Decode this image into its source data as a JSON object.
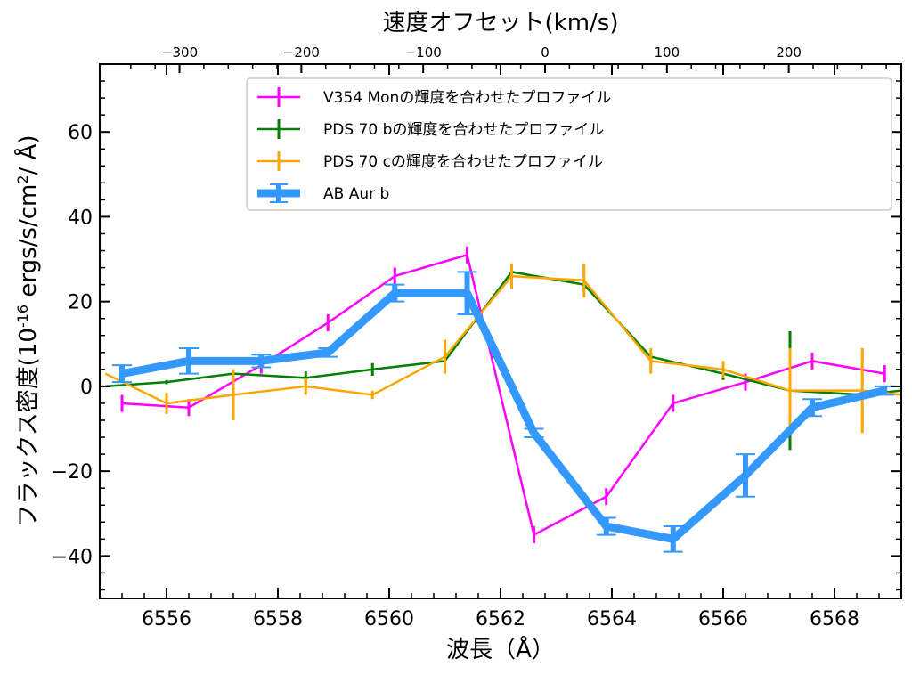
{
  "chart_data": {
    "type": "line",
    "xlabel": "波長（Å）",
    "ylabel_main": "フラックス密度(10",
    "ylabel_exp": "-16",
    "ylabel_mid": " ergs/s/cm",
    "ylabel_exp2": "2",
    "ylabel_end": "/ Å)",
    "top_xlabel": "速度オフセット(km/s)",
    "xlim": [
      6554.8,
      6569.2
    ],
    "ylim": [
      -50,
      76
    ],
    "x_ticks": [
      6556,
      6558,
      6560,
      6562,
      6564,
      6566,
      6568
    ],
    "x_tick_labels": [
      "6556",
      "6558",
      "6560",
      "6562",
      "6564",
      "6566",
      "6568"
    ],
    "y_ticks": [
      -40,
      -20,
      0,
      20,
      40,
      60
    ],
    "y_tick_labels": [
      "−40",
      "−20",
      "0",
      "20",
      "40",
      "60"
    ],
    "top_ticks": [
      -300,
      -200,
      -100,
      0,
      100,
      200
    ],
    "top_tick_labels": [
      "−300",
      "−200",
      "−100",
      "0",
      "100",
      "200"
    ],
    "center_wavelength": 6562.8,
    "grid": false,
    "legend_position": "top-right",
    "series": [
      {
        "name": "V354 Monの輝度を合わせたプロファイル",
        "color": "#ff00ff",
        "line_width": 2.5,
        "x": [
          6555.2,
          6556.4,
          6557.7,
          6558.9,
          6560.1,
          6561.4,
          6562.6,
          6563.9,
          6565.1,
          6566.4,
          6567.6,
          6568.9
        ],
        "y": [
          -4,
          -5,
          5,
          15,
          26,
          31,
          -35,
          -26,
          -4,
          1,
          6,
          3
        ],
        "err": [
          2,
          2,
          2,
          2,
          2,
          2,
          2,
          2,
          2,
          2,
          2,
          2
        ]
      },
      {
        "name": "PDS 70 bの輝度を合わせたプロファイル",
        "color": "#008000",
        "line_width": 2.5,
        "x": [
          6554.9,
          6556.0,
          6557.2,
          6558.5,
          6559.7,
          6561.0,
          6562.2,
          6563.5,
          6564.7,
          6566.0,
          6567.2,
          6568.5,
          6569.2
        ],
        "y": [
          0,
          1,
          3,
          2,
          4,
          6,
          27,
          24,
          7,
          3,
          -1,
          -2,
          -1
        ],
        "err": [
          0,
          0.5,
          1,
          1.5,
          1.5,
          1,
          1,
          1,
          1,
          1.5,
          14,
          1,
          0
        ]
      },
      {
        "name": "PDS 70 cの輝度を合わせたプロファイル",
        "color": "#ffa500",
        "line_width": 2.5,
        "x": [
          6554.9,
          6556.0,
          6557.2,
          6558.5,
          6559.7,
          6561.0,
          6562.2,
          6563.5,
          6564.7,
          6566.0,
          6567.2,
          6568.5,
          6569.2
        ],
        "y": [
          3,
          -4,
          -2,
          0,
          -2,
          7,
          26,
          25,
          6,
          4,
          -1,
          -1,
          -2
        ],
        "err": [
          0,
          2.5,
          6,
          2,
          1,
          4,
          3,
          4,
          3,
          2,
          10,
          10,
          0
        ]
      },
      {
        "name": "AB Aur b",
        "color": "#3399ff",
        "line_width": 9,
        "x": [
          6555.2,
          6556.4,
          6557.7,
          6558.9,
          6560.1,
          6561.4,
          6562.6,
          6563.9,
          6565.1,
          6566.4,
          6567.6,
          6568.9
        ],
        "y": [
          3,
          6,
          6,
          8,
          22,
          22,
          -11,
          -33,
          -36,
          -21,
          -5,
          -1
        ],
        "err": [
          2,
          3,
          1.5,
          1,
          2,
          5,
          1,
          2,
          3,
          5,
          2,
          1
        ]
      }
    ]
  }
}
